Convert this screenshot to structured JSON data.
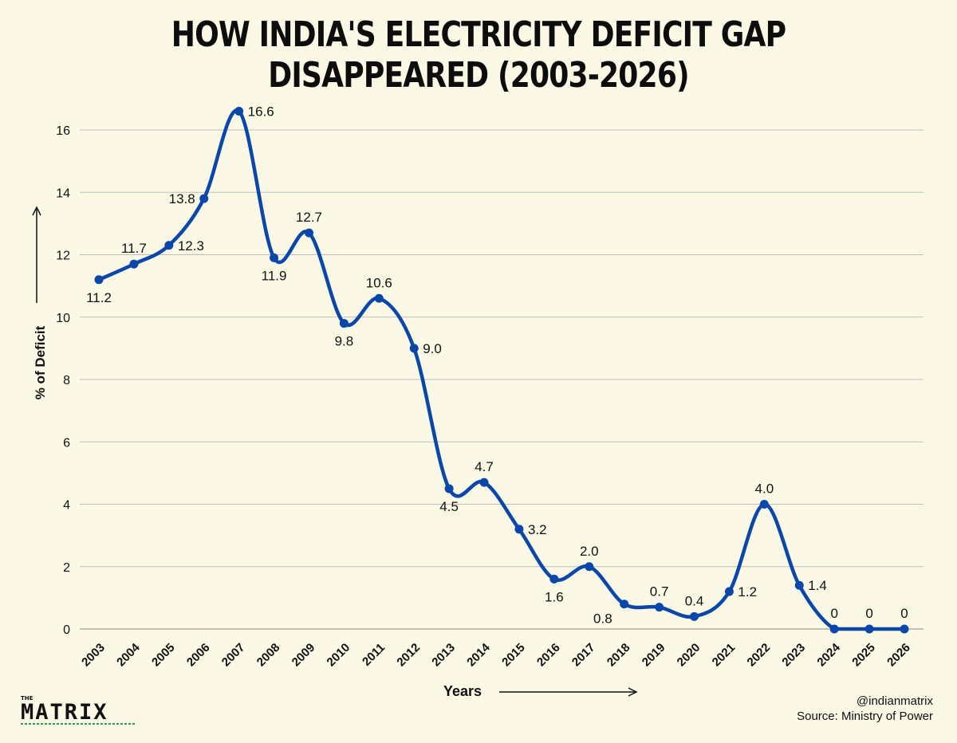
{
  "title": "HOW INDIA'S ELECTRICITY DEFICIT GAP DISAPPEARED (2003-2026)",
  "brand": {
    "small": "THE",
    "big": "MATRIX"
  },
  "credits": {
    "handle": "@indianmatrix",
    "source": "Source: Ministry of Power"
  },
  "colors": {
    "line": "#0a47a8",
    "background": "#fbf8e6",
    "grid": "#bdbdbd",
    "brand_accent": "#2e9b4e"
  },
  "chart_data": {
    "type": "line",
    "title": "HOW INDIA'S ELECTRICITY DEFICIT GAP DISAPPEARED (2003-2026)",
    "xlabel": "Years",
    "ylabel": "% of Deficit",
    "ylim": [
      0,
      16
    ],
    "yticks": [
      0,
      2,
      4,
      6,
      8,
      10,
      12,
      14,
      16
    ],
    "grid": true,
    "categories": [
      "2003",
      "2004",
      "2005",
      "2006",
      "2007",
      "2008",
      "2009",
      "2010",
      "2011",
      "2012",
      "2013",
      "2014",
      "2015",
      "2016",
      "2017",
      "2018",
      "2019",
      "2020",
      "2021",
      "2022",
      "2023",
      "2024",
      "2025",
      "2026"
    ],
    "values": [
      11.2,
      11.7,
      12.3,
      13.8,
      16.6,
      11.9,
      12.7,
      9.8,
      10.6,
      9.0,
      4.5,
      4.7,
      3.2,
      1.6,
      2.0,
      0.8,
      0.7,
      0.4,
      1.2,
      4.0,
      1.4,
      0,
      0,
      0
    ],
    "data_labels": [
      "11.2",
      "11.7",
      "12.3",
      "13.8",
      "16.6",
      "11.9",
      "12.7",
      "9.8",
      "10.6",
      "9.0",
      "4.5",
      "4.7",
      "3.2",
      "1.6",
      "2.0",
      "0.8",
      "0.7",
      "0.4",
      "1.2",
      "4.0",
      "1.4",
      "0",
      "0",
      "0"
    ]
  }
}
